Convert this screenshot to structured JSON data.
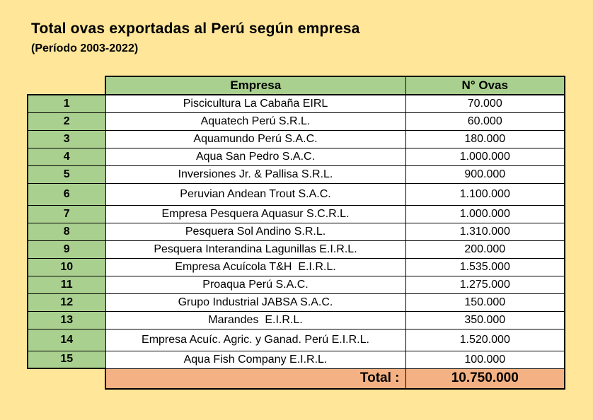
{
  "title": "Total ovas exportadas al Perú según empresa",
  "subtitle": "(Período 2003-2022)",
  "chart_data": {
    "type": "table",
    "title": "Total ovas exportadas al Perú según empresa",
    "subtitle": "(Período 2003-2022)",
    "columns": [
      "",
      "Empresa",
      "N° Ovas"
    ],
    "rows": [
      {
        "num": "1",
        "empresa": "Piscicultura La Cabaña EIRL",
        "ovas": "70.000"
      },
      {
        "num": "2",
        "empresa": "Aquatech Perú S.R.L.",
        "ovas": "60.000"
      },
      {
        "num": "3",
        "empresa": "Aquamundo Perú S.A.C.",
        "ovas": "180.000"
      },
      {
        "num": "4",
        "empresa": "Aqua San Pedro S.A.C.",
        "ovas": "1.000.000"
      },
      {
        "num": "5",
        "empresa": "Inversiones Jr. & Pallisa S.R.L.",
        "ovas": "900.000"
      },
      {
        "num": "6",
        "empresa": "Peruvian Andean Trout S.A.C.",
        "ovas": "1.100.000"
      },
      {
        "num": "7",
        "empresa": "Empresa Pesquera Aquasur S.C.R.L.",
        "ovas": "1.000.000"
      },
      {
        "num": "8",
        "empresa": "Pesquera Sol Andino S.R.L.",
        "ovas": "1.310.000"
      },
      {
        "num": "9",
        "empresa": "Pesquera Interandina Lagunillas E.I.R.L.",
        "ovas": "200.000"
      },
      {
        "num": "10",
        "empresa": "Empresa Acuícola T&H  E.I.R.L.",
        "ovas": "1.535.000"
      },
      {
        "num": "11",
        "empresa": "Proaqua Perú S.A.C.",
        "ovas": "1.275.000"
      },
      {
        "num": "12",
        "empresa": "Grupo Industrial JABSA S.A.C.",
        "ovas": "150.000"
      },
      {
        "num": "13",
        "empresa": "Marandes  E.I.R.L.",
        "ovas": "350.000"
      },
      {
        "num": "14",
        "empresa": "Empresa Acuíc. Agric. y Ganad. Perú E.I.R.L.",
        "ovas": "1.520.000"
      },
      {
        "num": "15",
        "empresa": "Aqua Fish Company E.I.R.L.",
        "ovas": "100.000"
      }
    ],
    "values_numeric": [
      70000,
      60000,
      180000,
      1000000,
      900000,
      1100000,
      1000000,
      1310000,
      200000,
      1535000,
      1275000,
      150000,
      350000,
      1520000,
      100000
    ],
    "total_label": "Total :",
    "total_value": "10.750.000",
    "total_numeric": 10750000,
    "legend_position": "none",
    "grid": "all-borders"
  },
  "colors": {
    "background": "#FFE699",
    "header_green": "#A9D08E",
    "total_orange": "#F4B183",
    "row_white": "#FFFFFF",
    "border": "#000000",
    "text": "#000000"
  }
}
